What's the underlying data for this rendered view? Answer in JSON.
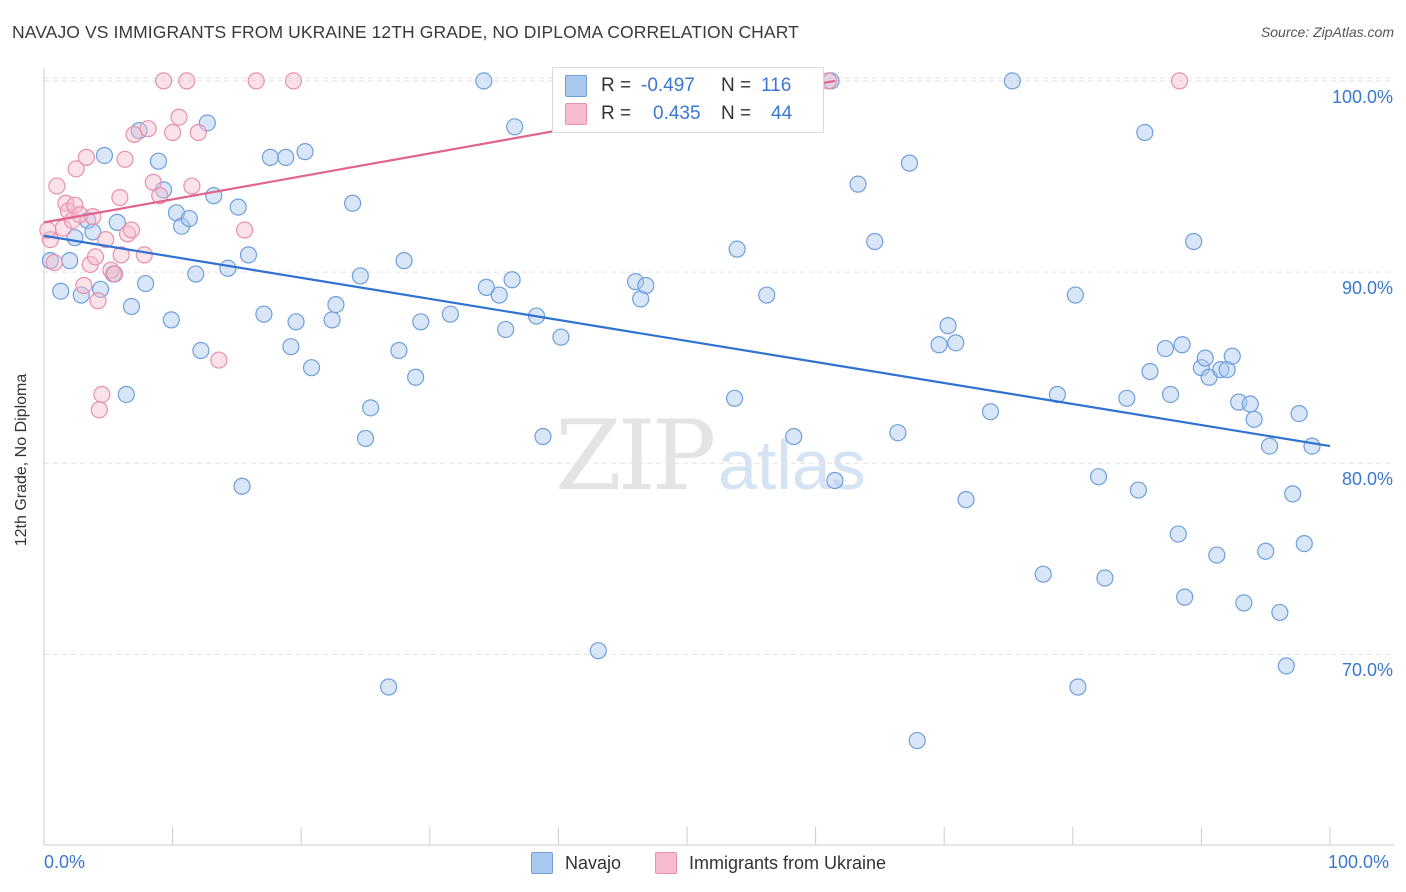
{
  "title": "NAVAJO VS IMMIGRANTS FROM UKRAINE 12TH GRADE, NO DIPLOMA CORRELATION CHART",
  "source": "Source: ZipAtlas.com",
  "watermark": {
    "zip": "ZIP",
    "atlas": "atlas"
  },
  "colors": {
    "navajo_fill": "#a9c8ee",
    "navajo_stroke": "#6f9fdc",
    "navajo_line": "#2f72d1",
    "ukraine_fill": "#f6bccd",
    "ukraine_stroke": "#e890ac",
    "ukraine_line": "#e0648f",
    "tick_label": "#3a78d0",
    "grid": "#e3e3e3"
  },
  "legend": {
    "navajo": {
      "r_label": "R =",
      "r_value": "-0.497",
      "n_label": "N =",
      "n_value": "116"
    },
    "ukraine": {
      "r_label": "R =",
      "r_value": "0.435",
      "n_label": "N =",
      "n_value": "44"
    }
  },
  "bottom_legend": {
    "navajo": "Navajo",
    "ukraine": "Immigrants from Ukraine"
  },
  "chart_data": {
    "type": "scatter",
    "title": "NAVAJO VS IMMIGRANTS FROM UKRAINE 12TH GRADE, NO DIPLOMA CORRELATION CHART",
    "xlabel": "",
    "ylabel": "12th Grade, No Diploma",
    "xlim": [
      0,
      100
    ],
    "ylim": [
      60.5,
      101
    ],
    "x_tick_labels": [
      "0.0%",
      "100.0%"
    ],
    "y_ticks": [
      70,
      80,
      90,
      100
    ],
    "y_tick_labels": [
      "70.0%",
      "80.0%",
      "90.0%",
      "100.0%"
    ],
    "grid": true,
    "legend_placement": "top-center",
    "series": [
      {
        "name": "Navajo",
        "trend": {
          "x": [
            0,
            100
          ],
          "y": [
            91.9,
            80.9
          ]
        },
        "points": [
          [
            0.5,
            90.6
          ],
          [
            1.3,
            89.0
          ],
          [
            2.0,
            90.6
          ],
          [
            2.4,
            91.8
          ],
          [
            2.9,
            88.8
          ],
          [
            3.4,
            92.7
          ],
          [
            3.8,
            92.1
          ],
          [
            4.4,
            89.1
          ],
          [
            4.7,
            96.1
          ],
          [
            5.4,
            89.9
          ],
          [
            5.7,
            92.6
          ],
          [
            6.4,
            83.6
          ],
          [
            6.8,
            88.2
          ],
          [
            7.4,
            97.4
          ],
          [
            7.9,
            89.4
          ],
          [
            8.9,
            95.8
          ],
          [
            9.3,
            94.3
          ],
          [
            9.9,
            87.5
          ],
          [
            10.3,
            93.1
          ],
          [
            10.7,
            92.4
          ],
          [
            11.3,
            92.8
          ],
          [
            11.8,
            89.9
          ],
          [
            12.2,
            85.9
          ],
          [
            12.7,
            97.8
          ],
          [
            13.2,
            94.0
          ],
          [
            14.3,
            90.2
          ],
          [
            15.1,
            93.4
          ],
          [
            15.4,
            78.8
          ],
          [
            15.9,
            90.9
          ],
          [
            17.1,
            87.8
          ],
          [
            17.6,
            96.0
          ],
          [
            18.8,
            96.0
          ],
          [
            19.2,
            86.1
          ],
          [
            19.6,
            87.4
          ],
          [
            20.3,
            96.3
          ],
          [
            20.8,
            85.0
          ],
          [
            22.4,
            87.5
          ],
          [
            22.7,
            88.3
          ],
          [
            24.0,
            93.6
          ],
          [
            24.6,
            89.8
          ],
          [
            25.0,
            81.3
          ],
          [
            25.4,
            82.9
          ],
          [
            26.8,
            68.3
          ],
          [
            27.6,
            85.9
          ],
          [
            28.0,
            90.6
          ],
          [
            28.9,
            84.5
          ],
          [
            29.3,
            87.4
          ],
          [
            31.6,
            87.8
          ],
          [
            34.2,
            100.0
          ],
          [
            34.4,
            89.2
          ],
          [
            35.4,
            88.8
          ],
          [
            35.9,
            87.0
          ],
          [
            36.4,
            89.6
          ],
          [
            36.6,
            97.6
          ],
          [
            38.3,
            87.7
          ],
          [
            38.8,
            81.4
          ],
          [
            40.2,
            86.6
          ],
          [
            43.1,
            70.2
          ],
          [
            46.0,
            89.5
          ],
          [
            46.4,
            88.6
          ],
          [
            46.8,
            89.3
          ],
          [
            53.7,
            83.4
          ],
          [
            53.8,
            100.0
          ],
          [
            53.9,
            91.2
          ],
          [
            56.2,
            88.8
          ],
          [
            58.3,
            81.4
          ],
          [
            61.2,
            100.0
          ],
          [
            61.5,
            79.1
          ],
          [
            63.3,
            94.6
          ],
          [
            64.6,
            91.6
          ],
          [
            66.4,
            81.6
          ],
          [
            67.3,
            95.7
          ],
          [
            67.9,
            65.5
          ],
          [
            69.6,
            86.2
          ],
          [
            70.3,
            87.2
          ],
          [
            70.9,
            86.3
          ],
          [
            71.7,
            78.1
          ],
          [
            73.6,
            82.7
          ],
          [
            75.3,
            100.0
          ],
          [
            77.7,
            74.2
          ],
          [
            78.8,
            83.6
          ],
          [
            80.2,
            88.8
          ],
          [
            80.4,
            68.3
          ],
          [
            82.0,
            79.3
          ],
          [
            82.5,
            74.0
          ],
          [
            84.2,
            83.4
          ],
          [
            85.1,
            78.6
          ],
          [
            85.6,
            97.3
          ],
          [
            86.0,
            84.8
          ],
          [
            87.2,
            86.0
          ],
          [
            87.6,
            83.6
          ],
          [
            88.2,
            76.3
          ],
          [
            88.5,
            86.2
          ],
          [
            88.7,
            73.0
          ],
          [
            89.4,
            91.6
          ],
          [
            90.0,
            85.0
          ],
          [
            90.3,
            85.5
          ],
          [
            90.6,
            84.5
          ],
          [
            91.2,
            75.2
          ],
          [
            91.5,
            84.9
          ],
          [
            92.0,
            84.9
          ],
          [
            92.4,
            85.6
          ],
          [
            92.9,
            83.2
          ],
          [
            93.3,
            72.7
          ],
          [
            93.8,
            83.1
          ],
          [
            94.1,
            82.3
          ],
          [
            95.0,
            75.4
          ],
          [
            95.3,
            80.9
          ],
          [
            96.1,
            72.2
          ],
          [
            96.6,
            69.4
          ],
          [
            97.1,
            78.4
          ],
          [
            97.6,
            82.6
          ],
          [
            98.0,
            75.8
          ],
          [
            98.6,
            80.9
          ]
        ]
      },
      {
        "name": "Immigrants from Ukraine",
        "trend": {
          "x": [
            0,
            61.5
          ],
          "y": [
            92.6,
            100.0
          ]
        },
        "points": [
          [
            0.5,
            91.7
          ],
          [
            0.8,
            90.5
          ],
          [
            1.0,
            94.5
          ],
          [
            1.5,
            92.3
          ],
          [
            1.7,
            93.6
          ],
          [
            1.9,
            93.2
          ],
          [
            2.2,
            92.7
          ],
          [
            2.4,
            93.5
          ],
          [
            2.5,
            95.4
          ],
          [
            2.8,
            93.0
          ],
          [
            3.1,
            89.3
          ],
          [
            3.3,
            96.0
          ],
          [
            3.8,
            92.9
          ],
          [
            3.6,
            90.4
          ],
          [
            4.0,
            90.8
          ],
          [
            4.2,
            88.5
          ],
          [
            4.5,
            83.6
          ],
          [
            4.3,
            82.8
          ],
          [
            4.8,
            91.7
          ],
          [
            5.2,
            90.1
          ],
          [
            5.5,
            89.9
          ],
          [
            5.9,
            93.9
          ],
          [
            6.0,
            90.9
          ],
          [
            6.3,
            95.9
          ],
          [
            6.5,
            92.0
          ],
          [
            6.8,
            92.2
          ],
          [
            7.0,
            97.2
          ],
          [
            7.8,
            90.9
          ],
          [
            8.1,
            97.5
          ],
          [
            8.5,
            94.7
          ],
          [
            9.0,
            94.0
          ],
          [
            9.3,
            100.0
          ],
          [
            10.0,
            97.3
          ],
          [
            10.5,
            98.1
          ],
          [
            11.1,
            100.0
          ],
          [
            11.5,
            94.5
          ],
          [
            12.0,
            97.3
          ],
          [
            13.6,
            85.4
          ],
          [
            15.6,
            92.2
          ],
          [
            16.5,
            100.0
          ],
          [
            19.4,
            100.0
          ],
          [
            61.0,
            100.0
          ],
          [
            88.3,
            100.0
          ],
          [
            0.3,
            92.2
          ]
        ]
      }
    ]
  }
}
